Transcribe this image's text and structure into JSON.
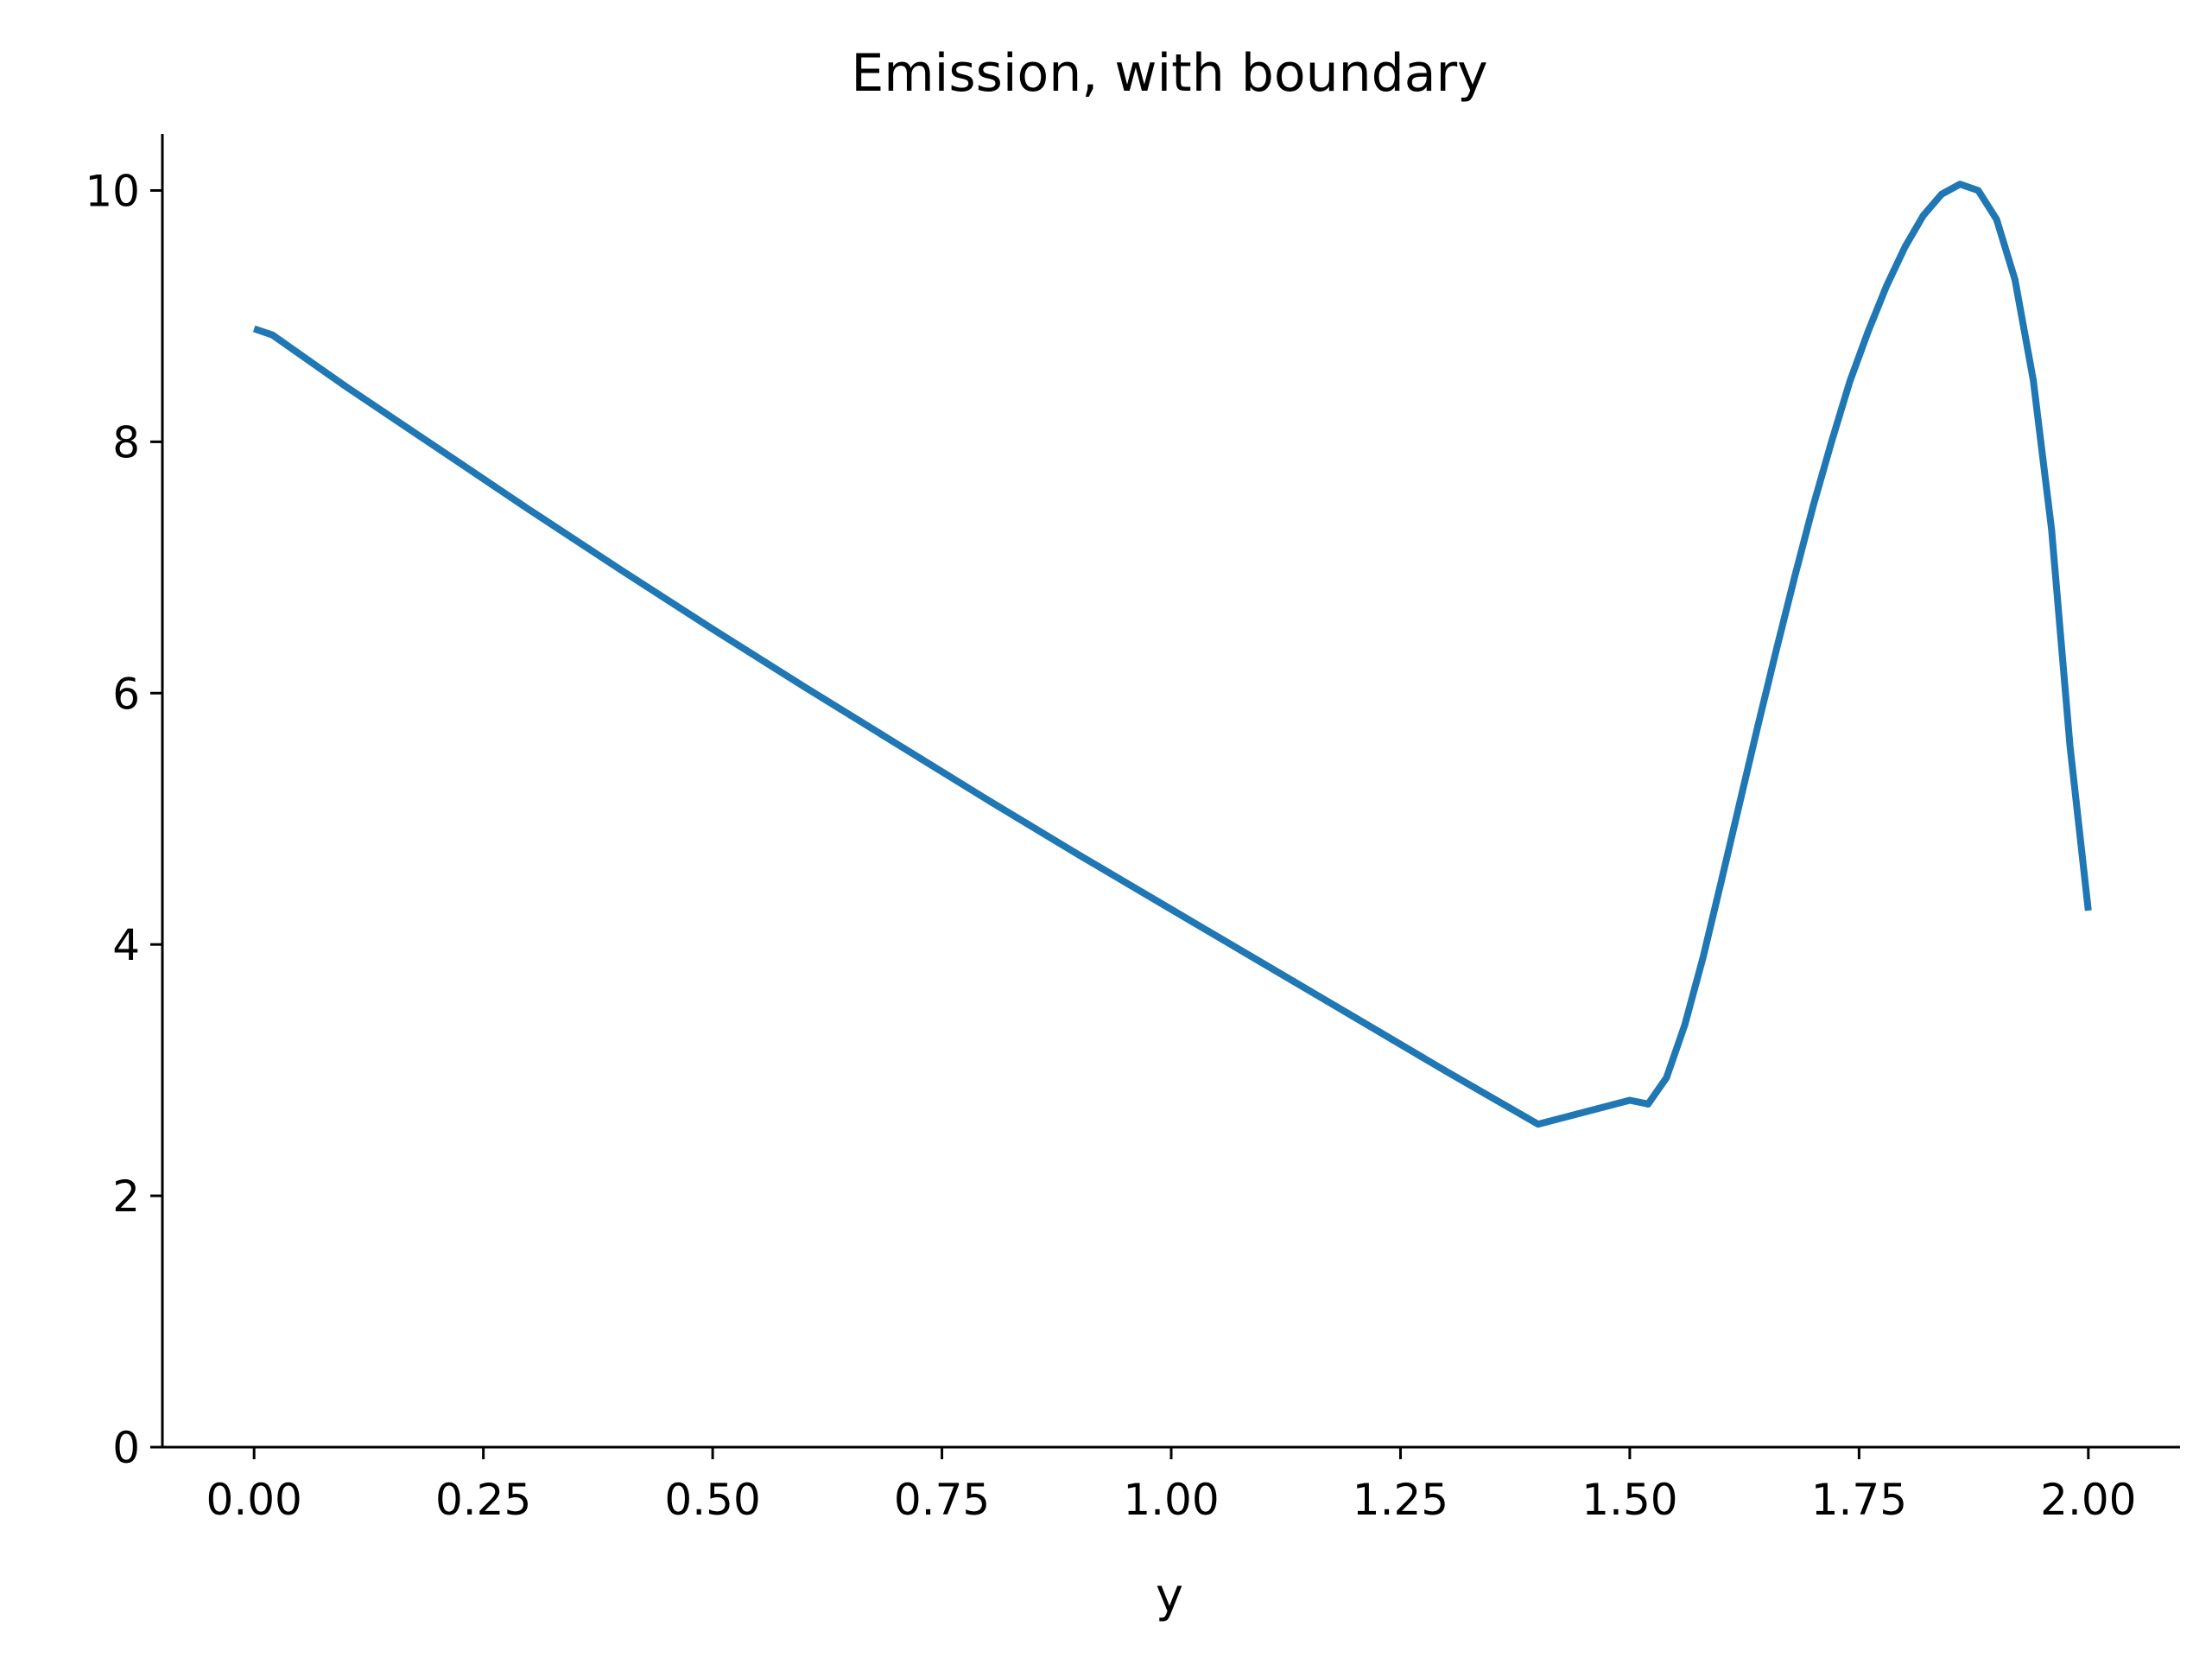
{
  "chart_data": {
    "type": "line",
    "title": "Emission, with boundary",
    "xlabel": "y",
    "ylabel": "",
    "xlim": [
      -0.1,
      2.1
    ],
    "ylim": [
      0,
      10.45
    ],
    "x_ticks": [
      "0.00",
      "0.25",
      "0.50",
      "0.75",
      "1.00",
      "1.25",
      "1.50",
      "1.75",
      "2.00"
    ],
    "y_ticks": [
      "0",
      "2",
      "4",
      "6",
      "8",
      "10"
    ],
    "grid": false,
    "series": [
      {
        "color": "#1f77b4",
        "x": [
          0.0,
          0.02,
          0.1,
          0.2,
          0.3,
          0.4,
          0.5,
          0.6,
          0.7,
          0.8,
          0.9,
          1.0,
          1.1,
          1.2,
          1.3,
          1.4,
          1.5,
          1.52,
          1.54,
          1.56,
          1.58,
          1.6,
          1.62,
          1.64,
          1.66,
          1.68,
          1.7,
          1.72,
          1.74,
          1.76,
          1.78,
          1.8,
          1.82,
          1.84,
          1.86,
          1.88,
          1.9,
          1.92,
          1.94,
          1.96,
          1.98,
          2.0
        ],
        "y": [
          8.9,
          8.85,
          8.44,
          7.95,
          7.46,
          6.98,
          6.51,
          6.05,
          5.6,
          5.15,
          4.71,
          4.28,
          3.85,
          3.42,
          2.99,
          2.57,
          2.76,
          2.73,
          2.94,
          3.36,
          3.9,
          4.51,
          5.13,
          5.75,
          6.35,
          6.93,
          7.49,
          8.0,
          8.48,
          8.88,
          9.24,
          9.55,
          9.8,
          9.97,
          10.05,
          10.0,
          9.77,
          9.29,
          8.49,
          7.3,
          5.58,
          4.27
        ]
      }
    ]
  }
}
